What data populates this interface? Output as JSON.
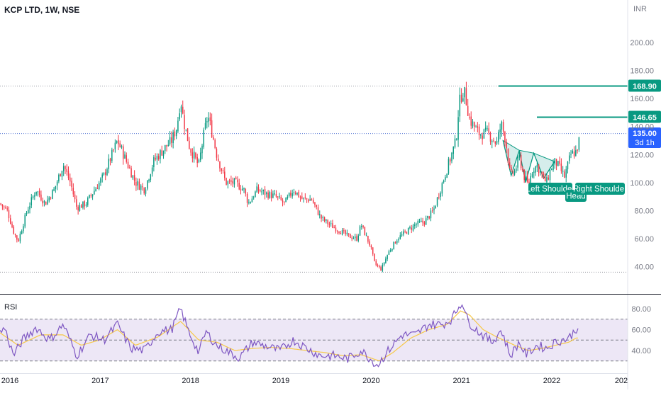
{
  "header": {
    "title": "KCP LTD, 1W, NSE",
    "currency": "INR"
  },
  "colors": {
    "up": "#089981",
    "down": "#f23645",
    "rsi_line": "#7e57c2",
    "rsi_ma": "#f7c948",
    "rsi_band": "#ede7f6",
    "level_line": "#089981",
    "price_label": "#2962ff",
    "pattern_fill": "#b2dfdb"
  },
  "price_axis": {
    "ticks": [
      "200.00",
      "180.00",
      "160.00",
      "140.00",
      "120.00",
      "100.00",
      "80.00",
      "60.00",
      "40.00"
    ]
  },
  "rsi_axis": {
    "ticks": [
      "80.00",
      "60.00",
      "40.00"
    ]
  },
  "time_axis": {
    "ticks": [
      "2016",
      "2017",
      "2018",
      "2019",
      "2020",
      "2021",
      "2022",
      "202"
    ]
  },
  "labels": {
    "level_high": "168.90",
    "level_mid": "146.65",
    "last_price": "135.00",
    "countdown": "3d 1h",
    "rsi_title": "RSI",
    "left_shoulder": "Left Shoulder",
    "head": "Head",
    "right_shoulder": "Right Shoulder"
  },
  "chart_data": [
    {
      "type": "candlestick",
      "title": "KCP LTD, 1W, NSE",
      "x_range": [
        2016.0,
        2022.95
      ],
      "ylim": [
        30,
        212
      ],
      "grid": false,
      "anchors": [
        [
          2016.0,
          85
        ],
        [
          2016.08,
          80
        ],
        [
          2016.15,
          65
        ],
        [
          2016.2,
          58
        ],
        [
          2016.3,
          80
        ],
        [
          2016.4,
          95
        ],
        [
          2016.5,
          85
        ],
        [
          2016.6,
          95
        ],
        [
          2016.7,
          113
        ],
        [
          2016.78,
          100
        ],
        [
          2016.85,
          82
        ],
        [
          2016.95,
          85
        ],
        [
          2017.05,
          95
        ],
        [
          2017.15,
          105
        ],
        [
          2017.3,
          130
        ],
        [
          2017.4,
          115
        ],
        [
          2017.5,
          100
        ],
        [
          2017.6,
          95
        ],
        [
          2017.7,
          115
        ],
        [
          2017.8,
          123
        ],
        [
          2017.9,
          130
        ],
        [
          2017.96,
          140
        ],
        [
          2018.0,
          160
        ],
        [
          2018.03,
          145
        ],
        [
          2018.1,
          125
        ],
        [
          2018.2,
          112
        ],
        [
          2018.25,
          132
        ],
        [
          2018.3,
          148
        ],
        [
          2018.35,
          135
        ],
        [
          2018.4,
          120
        ],
        [
          2018.5,
          100
        ],
        [
          2018.6,
          100
        ],
        [
          2018.7,
          95
        ],
        [
          2018.75,
          85
        ],
        [
          2018.85,
          95
        ],
        [
          2018.95,
          92
        ],
        [
          2019.05,
          90
        ],
        [
          2019.15,
          85
        ],
        [
          2019.25,
          95
        ],
        [
          2019.35,
          88
        ],
        [
          2019.45,
          88
        ],
        [
          2019.55,
          75
        ],
        [
          2019.65,
          70
        ],
        [
          2019.75,
          66
        ],
        [
          2019.85,
          62
        ],
        [
          2019.95,
          60
        ],
        [
          2020.0,
          70
        ],
        [
          2020.05,
          62
        ],
        [
          2020.1,
          55
        ],
        [
          2020.15,
          42
        ],
        [
          2020.22,
          38
        ],
        [
          2020.3,
          50
        ],
        [
          2020.4,
          60
        ],
        [
          2020.5,
          65
        ],
        [
          2020.6,
          70
        ],
        [
          2020.7,
          72
        ],
        [
          2020.8,
          80
        ],
        [
          2020.9,
          100
        ],
        [
          2020.95,
          110
        ],
        [
          2021.0,
          120
        ],
        [
          2021.05,
          130
        ],
        [
          2021.08,
          155
        ],
        [
          2021.12,
          165
        ],
        [
          2021.15,
          163
        ],
        [
          2021.2,
          145
        ],
        [
          2021.3,
          135
        ],
        [
          2021.4,
          135
        ],
        [
          2021.5,
          128
        ],
        [
          2021.55,
          142
        ],
        [
          2021.6,
          130
        ],
        [
          2021.65,
          105
        ],
        [
          2021.7,
          108
        ],
        [
          2021.75,
          118
        ],
        [
          2021.8,
          105
        ],
        [
          2021.85,
          98
        ],
        [
          2021.9,
          110
        ],
        [
          2021.95,
          112
        ],
        [
          2022.0,
          105
        ],
        [
          2022.05,
          100
        ],
        [
          2022.1,
          110
        ],
        [
          2022.15,
          115
        ],
        [
          2022.2,
          110
        ],
        [
          2022.25,
          104
        ],
        [
          2022.32,
          120
        ],
        [
          2022.38,
          122
        ],
        [
          2022.42,
          132
        ]
      ],
      "levels": [
        168.9,
        146.65,
        135.0,
        36.0
      ],
      "last_price": 135.0,
      "pattern": {
        "name": "Inverse head and shoulders",
        "points": [
          [
            2021.57,
            130
          ],
          [
            2021.66,
            105
          ],
          [
            2021.75,
            123
          ],
          [
            2021.82,
            100
          ],
          [
            2021.91,
            121
          ],
          [
            2022.02,
            103
          ],
          [
            2022.14,
            115
          ]
        ]
      },
      "annotations": [
        "Left Shoulder",
        "Head",
        "Right Shoulder"
      ]
    },
    {
      "type": "line",
      "title": "RSI",
      "ylim": [
        24,
        94
      ],
      "bands": [
        30,
        50,
        70
      ],
      "series": [
        {
          "values_anchors": [
            [
              2016.0,
              57
            ],
            [
              2016.05,
              62
            ],
            [
              2016.15,
              35
            ],
            [
              2016.25,
              50
            ],
            [
              2016.4,
              62
            ],
            [
              2016.55,
              50
            ],
            [
              2016.7,
              65
            ],
            [
              2016.85,
              35
            ],
            [
              2017.0,
              55
            ],
            [
              2017.15,
              50
            ],
            [
              2017.3,
              65
            ],
            [
              2017.45,
              42
            ],
            [
              2017.6,
              40
            ],
            [
              2017.75,
              58
            ],
            [
              2017.9,
              60
            ],
            [
              2018.0,
              80
            ],
            [
              2018.08,
              60
            ],
            [
              2018.2,
              38
            ],
            [
              2018.28,
              58
            ],
            [
              2018.4,
              45
            ],
            [
              2018.5,
              40
            ],
            [
              2018.65,
              33
            ],
            [
              2018.8,
              48
            ],
            [
              2018.95,
              44
            ],
            [
              2019.1,
              40
            ],
            [
              2019.25,
              50
            ],
            [
              2019.4,
              42
            ],
            [
              2019.55,
              35
            ],
            [
              2019.7,
              35
            ],
            [
              2019.85,
              32
            ],
            [
              2020.0,
              40
            ],
            [
              2020.1,
              32
            ],
            [
              2020.18,
              26
            ],
            [
              2020.3,
              40
            ],
            [
              2020.45,
              55
            ],
            [
              2020.6,
              55
            ],
            [
              2020.75,
              65
            ],
            [
              2020.9,
              65
            ],
            [
              2021.0,
              70
            ],
            [
              2021.08,
              82
            ],
            [
              2021.12,
              87
            ],
            [
              2021.18,
              68
            ],
            [
              2021.3,
              58
            ],
            [
              2021.45,
              48
            ],
            [
              2021.55,
              60
            ],
            [
              2021.65,
              35
            ],
            [
              2021.75,
              48
            ],
            [
              2021.82,
              36
            ],
            [
              2021.95,
              45
            ],
            [
              2022.05,
              42
            ],
            [
              2022.15,
              48
            ],
            [
              2022.3,
              52
            ],
            [
              2022.4,
              63
            ]
          ]
        },
        {
          "values_anchors": [
            [
              2016.0,
              57
            ],
            [
              2016.2,
              45
            ],
            [
              2016.45,
              55
            ],
            [
              2016.7,
              55
            ],
            [
              2016.9,
              45
            ],
            [
              2017.1,
              50
            ],
            [
              2017.3,
              60
            ],
            [
              2017.5,
              45
            ],
            [
              2017.75,
              53
            ],
            [
              2018.0,
              68
            ],
            [
              2018.2,
              50
            ],
            [
              2018.4,
              48
            ],
            [
              2018.6,
              40
            ],
            [
              2018.8,
              42
            ],
            [
              2019.0,
              43
            ],
            [
              2019.2,
              42
            ],
            [
              2019.4,
              40
            ],
            [
              2019.6,
              38
            ],
            [
              2019.8,
              35
            ],
            [
              2020.0,
              36
            ],
            [
              2020.2,
              30
            ],
            [
              2020.35,
              38
            ],
            [
              2020.55,
              52
            ],
            [
              2020.75,
              60
            ],
            [
              2020.95,
              65
            ],
            [
              2021.1,
              78
            ],
            [
              2021.2,
              74
            ],
            [
              2021.35,
              60
            ],
            [
              2021.5,
              53
            ],
            [
              2021.7,
              45
            ],
            [
              2021.85,
              40
            ],
            [
              2022.0,
              42
            ],
            [
              2022.15,
              45
            ],
            [
              2022.3,
              48
            ],
            [
              2022.38,
              52
            ]
          ]
        }
      ]
    }
  ]
}
